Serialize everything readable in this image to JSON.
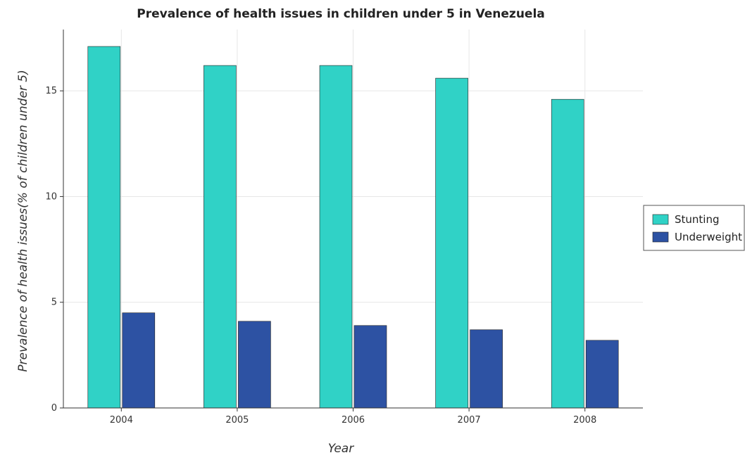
{
  "chart_data": {
    "type": "bar",
    "title": "Prevalence of health issues in children under 5 in Venezuela",
    "xlabel": "Year",
    "ylabel": "Prevalence of health issues(% of children under 5)",
    "categories": [
      "2004",
      "2005",
      "2006",
      "2007",
      "2008"
    ],
    "series": [
      {
        "name": "Stunting",
        "values": [
          17.1,
          16.2,
          16.2,
          15.6,
          14.6
        ],
        "color": "#30d2c6"
      },
      {
        "name": "Underweight",
        "values": [
          4.5,
          4.1,
          3.9,
          3.7,
          3.2
        ],
        "color": "#2d52a3"
      }
    ],
    "ylim": [
      0,
      17.9
    ],
    "yticks": [
      0,
      5,
      10,
      15
    ],
    "grid": true,
    "legend_position": "right"
  }
}
